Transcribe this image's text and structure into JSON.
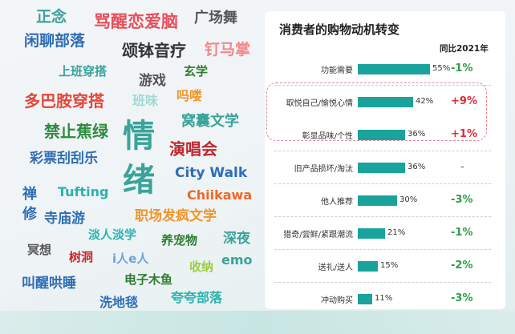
{
  "word_cloud": [
    {
      "id": "w0",
      "text": "正念",
      "color": "#3aa39a",
      "size": 19
    },
    {
      "id": "w1",
      "text": "骂醒恋爱脑",
      "color": "#e84e5b",
      "size": 21
    },
    {
      "id": "w2",
      "text": "广场舞",
      "color": "#555555",
      "size": 18
    },
    {
      "id": "w3",
      "text": "闲聊部落",
      "color": "#2f6db5",
      "size": 19
    },
    {
      "id": "w4",
      "text": "颂钵音疗",
      "color": "#333333",
      "size": 20
    },
    {
      "id": "w5",
      "text": "钉马掌",
      "color": "#f08a8a",
      "size": 19
    },
    {
      "id": "w6",
      "text": "上班穿搭",
      "color": "#3aa39a",
      "size": 15
    },
    {
      "id": "w7",
      "text": "游戏",
      "color": "#555555",
      "size": 17
    },
    {
      "id": "w8",
      "text": "玄学",
      "color": "#2e7d32",
      "size": 15
    },
    {
      "id": "w9",
      "text": "多巴胺穿搭",
      "color": "#e2483a",
      "size": 20
    },
    {
      "id": "w10",
      "text": "班味",
      "color": "#9fd8d4",
      "size": 16
    },
    {
      "id": "w11",
      "text": "吗喽",
      "color": "#f0952a",
      "size": 16
    },
    {
      "id": "w12",
      "text": "禁止蕉绿",
      "color": "#2e8a3e",
      "size": 20
    },
    {
      "id": "w13",
      "text": "情",
      "color": "#3aa39a",
      "size": 40
    },
    {
      "id": "w14",
      "text": "窝囊文学",
      "color": "#3aa39a",
      "size": 18
    },
    {
      "id": "w15",
      "text": "彩票刮刮乐",
      "color": "#2f6db5",
      "size": 17
    },
    {
      "id": "w16",
      "text": "演唱会",
      "color": "#c0262d",
      "size": 20
    },
    {
      "id": "w17",
      "text": "City Walk",
      "color": "#2f6db5",
      "size": 17
    },
    {
      "id": "w18",
      "text": "绪",
      "color": "#3aa39a",
      "size": 40
    },
    {
      "id": "w19",
      "text": "禅",
      "color": "#2f6db5",
      "size": 18
    },
    {
      "id": "w20",
      "text": "Tufting",
      "color": "#2ab3ad",
      "size": 16
    },
    {
      "id": "w21",
      "text": "Chiikawa",
      "color": "#f06a25",
      "size": 16
    },
    {
      "id": "w22",
      "text": "修",
      "color": "#2f6db5",
      "size": 18
    },
    {
      "id": "w23",
      "text": "寺庙游",
      "color": "#2f6db5",
      "size": 17
    },
    {
      "id": "w24",
      "text": "职场发疯文学",
      "color": "#f0952a",
      "size": 17
    },
    {
      "id": "w25",
      "text": "淡人淡学",
      "color": "#2ab3ad",
      "size": 15
    },
    {
      "id": "w26",
      "text": "冥想",
      "color": "#555555",
      "size": 15
    },
    {
      "id": "w27",
      "text": "养宠物",
      "color": "#2e7d32",
      "size": 15
    },
    {
      "id": "w28",
      "text": "深夜",
      "color": "#3aa39a",
      "size": 17
    },
    {
      "id": "w29",
      "text": "树洞",
      "color": "#c0262d",
      "size": 15
    },
    {
      "id": "w30",
      "text": "i人e人",
      "color": "#6aa3d8",
      "size": 15
    },
    {
      "id": "w31",
      "text": "emo",
      "color": "#3aa39a",
      "size": 16
    },
    {
      "id": "w32",
      "text": "收纳",
      "color": "#9ccc3c",
      "size": 15
    },
    {
      "id": "w33",
      "text": "叫醒哄睡",
      "color": "#2f6db5",
      "size": 17
    },
    {
      "id": "w34",
      "text": "电子木鱼",
      "color": "#2e7d32",
      "size": 15
    },
    {
      "id": "w35",
      "text": "洗地毯",
      "color": "#2f6db5",
      "size": 16
    },
    {
      "id": "w36",
      "text": "夸夸部落",
      "color": "#2ab3ad",
      "size": 16
    }
  ],
  "chart_data": {
    "type": "bar",
    "title": "消费者的购物动机转变",
    "change_header": "同比2021年",
    "categories": [
      "功能需要",
      "取悦自己/愉悦心情",
      "彰显品味/个性",
      "旧产品损坏/淘汰",
      "他人推荐",
      "猎奇/尝鲜/紧跟潮流",
      "送礼/送人",
      "冲动购买"
    ],
    "values": [
      55,
      42,
      36,
      36,
      30,
      21,
      15,
      11
    ],
    "value_labels": [
      "55%",
      "42%",
      "36%",
      "36%",
      "30%",
      "21%",
      "15%",
      "11%"
    ],
    "changes": [
      "-1%",
      "+9%",
      "+1%",
      "-",
      "-3%",
      "-1%",
      "-2%",
      "-3%"
    ],
    "highlighted": [
      "取悦自己/愉悦心情",
      "彰显品味/个性"
    ],
    "colors": {
      "bar": "#1aa39d",
      "negative": "#2e9e4a",
      "positive": "#e0283a",
      "highlight_border": "#e38a96"
    }
  }
}
